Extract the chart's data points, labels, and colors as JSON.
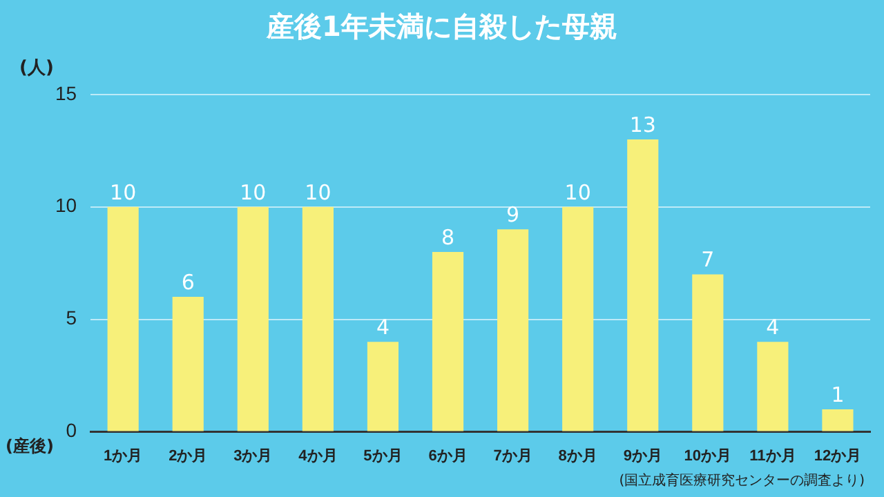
{
  "chart_data": {
    "type": "bar",
    "title": "産後1年未満に自殺した母親",
    "ylabel": "(人)",
    "xlabel": "(産後)",
    "categories": [
      "1か月",
      "2か月",
      "3か月",
      "4か月",
      "5か月",
      "6か月",
      "7か月",
      "8か月",
      "9か月",
      "10か月",
      "11か月",
      "12か月"
    ],
    "values": [
      10,
      6,
      10,
      10,
      4,
      8,
      9,
      10,
      13,
      7,
      4,
      1
    ],
    "color": "#f7f07a",
    "ylim": [
      0,
      15
    ],
    "yticks": [
      0,
      5,
      10,
      15
    ],
    "grid": "y",
    "data_labels": true,
    "legend": false,
    "annotations": [
      "(国立成育医療研究センターの調査より)"
    ]
  }
}
